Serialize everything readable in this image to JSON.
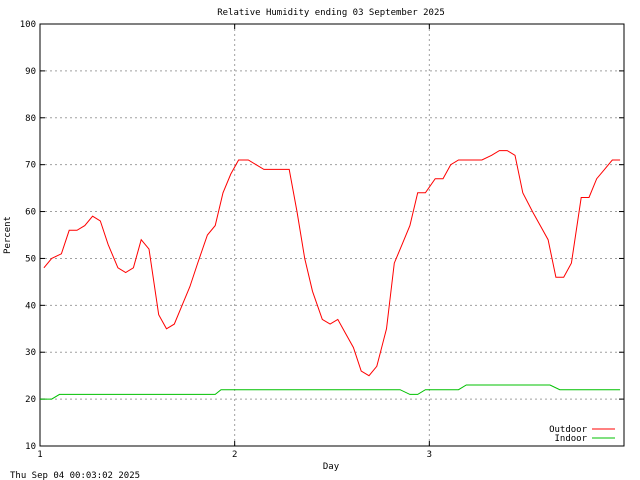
{
  "chart_data": {
    "type": "line",
    "title": "Relative Humidity ending 03 September 2025",
    "xlabel": "Day",
    "ylabel": "Percent",
    "xlim": [
      1,
      4
    ],
    "ylim": [
      10,
      100
    ],
    "x_ticks": [
      1,
      2,
      3
    ],
    "y_ticks": [
      10,
      20,
      30,
      40,
      50,
      60,
      70,
      80,
      90,
      100
    ],
    "grid": true,
    "legend_position": "bottom-right",
    "series": [
      {
        "name": "Outdoor",
        "color": "#ff0000",
        "x": [
          1.02,
          1.06,
          1.11,
          1.15,
          1.19,
          1.23,
          1.27,
          1.31,
          1.35,
          1.4,
          1.44,
          1.48,
          1.52,
          1.56,
          1.61,
          1.65,
          1.69,
          1.73,
          1.77,
          1.81,
          1.86,
          1.9,
          1.94,
          1.98,
          2.02,
          2.07,
          2.11,
          2.15,
          2.19,
          2.23,
          2.28,
          2.32,
          2.36,
          2.4,
          2.45,
          2.49,
          2.53,
          2.57,
          2.61,
          2.65,
          2.69,
          2.73,
          2.78,
          2.82,
          2.86,
          2.9,
          2.94,
          2.98,
          3.03,
          3.07,
          3.11,
          3.15,
          3.19,
          3.23,
          3.27,
          3.32,
          3.36,
          3.4,
          3.44,
          3.48,
          3.53,
          3.57,
          3.61,
          3.65,
          3.69,
          3.73,
          3.78,
          3.82,
          3.86,
          3.9,
          3.94,
          3.98
        ],
        "values": [
          48,
          50,
          51,
          56,
          56,
          57,
          59,
          58,
          53,
          48,
          47,
          48,
          54,
          52,
          38,
          35,
          36,
          40,
          44,
          49,
          55,
          57,
          64,
          68,
          71,
          71,
          70,
          69,
          69,
          69,
          69,
          60,
          50,
          43,
          37,
          36,
          37,
          34,
          31,
          26,
          25,
          27,
          35,
          49,
          53,
          57,
          64,
          64,
          67,
          67,
          70,
          71,
          71,
          71,
          71,
          72,
          73,
          73,
          72,
          64,
          60,
          57,
          54,
          46,
          46,
          49,
          63,
          63,
          67,
          69,
          71,
          71
        ]
      },
      {
        "name": "Indoor",
        "color": "#00c000",
        "x": [
          1.0,
          1.06,
          1.1,
          1.9,
          1.93,
          2.85,
          2.9,
          2.94,
          2.98,
          3.15,
          3.19,
          3.62,
          3.67,
          3.98
        ],
        "values": [
          20,
          20,
          21,
          21,
          22,
          22,
          21,
          21,
          22,
          22,
          23,
          23,
          22,
          22
        ]
      }
    ]
  },
  "footer": {
    "timestamp": "Thu Sep 04 00:03:02 2025"
  }
}
